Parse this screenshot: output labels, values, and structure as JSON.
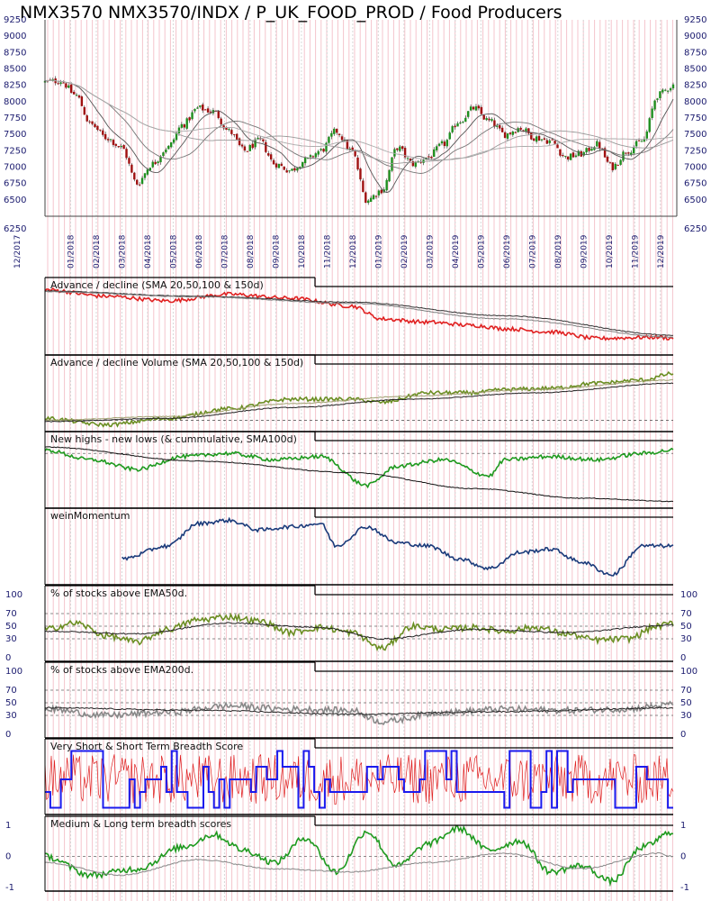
{
  "title": "NMX3570 NMX3570/INDX / P_UK_FOOD_PROD / Food Producers",
  "chart_data": {
    "type": "line",
    "x_ticks": [
      "12/2017",
      "01/2018",
      "02/2018",
      "03/2018",
      "04/2018",
      "05/2018",
      "06/2018",
      "07/2018",
      "08/2018",
      "09/2018",
      "10/2018",
      "11/2018",
      "12/2018",
      "01/2019",
      "02/2019",
      "03/2019",
      "04/2019",
      "05/2019",
      "06/2019",
      "07/2019",
      "08/2019",
      "09/2019",
      "10/2019",
      "11/2019",
      "12/2019"
    ],
    "panels": [
      {
        "id": "price",
        "type": "candlestick",
        "title": "NMX3570 NMX3570/INDX / P_UK_FOOD_PROD / Food Producers",
        "y_ticks": [
          9250,
          9000,
          8750,
          8500,
          8250,
          8000,
          7750,
          7500,
          7250,
          7000,
          6750,
          6500,
          6250
        ],
        "ylim": [
          6250,
          9250
        ],
        "close_anchors": [
          [
            0,
            8300
          ],
          [
            1,
            8320
          ],
          [
            2,
            8100
          ],
          [
            3,
            7650
          ],
          [
            4,
            7450
          ],
          [
            5,
            7300
          ],
          [
            6,
            6750
          ],
          [
            7,
            7050
          ],
          [
            8,
            7300
          ],
          [
            9,
            7650
          ],
          [
            10,
            7900
          ],
          [
            11,
            7850
          ],
          [
            12,
            7550
          ],
          [
            13,
            7250
          ],
          [
            14,
            7400
          ],
          [
            15,
            7050
          ],
          [
            16,
            6950
          ],
          [
            17,
            7100
          ],
          [
            18,
            7250
          ],
          [
            19,
            7550
          ],
          [
            20,
            7250
          ],
          [
            21,
            6500
          ],
          [
            22,
            6650
          ],
          [
            23,
            7300
          ],
          [
            24,
            7050
          ],
          [
            25,
            7150
          ],
          [
            26,
            7350
          ],
          [
            27,
            7700
          ],
          [
            28,
            7900
          ],
          [
            29,
            7700
          ],
          [
            30,
            7500
          ],
          [
            31,
            7600
          ],
          [
            32,
            7450
          ],
          [
            33,
            7400
          ],
          [
            34,
            7150
          ],
          [
            35,
            7200
          ],
          [
            36,
            7350
          ],
          [
            37,
            7000
          ],
          [
            38,
            7250
          ],
          [
            39,
            7400
          ],
          [
            40,
            8100
          ],
          [
            41,
            8250
          ]
        ],
        "moving_averages": [
          "SMA20",
          "SMA50",
          "SMA100",
          "SMA150"
        ]
      },
      {
        "id": "ad",
        "title": "Advance / decline (SMA 20,50,100 & 150d)",
        "series": [
          {
            "color": "#e02020",
            "anchors": [
              [
                0,
                0.95
              ],
              [
                4,
                0.85
              ],
              [
                8,
                0.78
              ],
              [
                12,
                0.88
              ],
              [
                16,
                0.82
              ],
              [
                20,
                0.7
              ],
              [
                22,
                0.5
              ],
              [
                25,
                0.45
              ],
              [
                28,
                0.4
              ],
              [
                30,
                0.35
              ],
              [
                33,
                0.3
              ],
              [
                36,
                0.2
              ],
              [
                40,
                0.22
              ],
              [
                41,
                0.2
              ]
            ]
          },
          {
            "color": "#333333",
            "anchors": [
              [
                0,
                0.93
              ],
              [
                10,
                0.85
              ],
              [
                20,
                0.76
              ],
              [
                30,
                0.55
              ],
              [
                41,
                0.25
              ]
            ]
          },
          {
            "color": "#808080",
            "anchors": [
              [
                0,
                0.92
              ],
              [
                10,
                0.84
              ],
              [
                20,
                0.74
              ],
              [
                30,
                0.5
              ],
              [
                41,
                0.22
              ]
            ]
          }
        ]
      },
      {
        "id": "adv",
        "title": "Advance / decline Volume (SMA 20,50,100 & 150d)",
        "series": [
          {
            "color": "#6b8e23",
            "anchors": [
              [
                0,
                0.15
              ],
              [
                4,
                0.05
              ],
              [
                8,
                0.15
              ],
              [
                12,
                0.3
              ],
              [
                16,
                0.45
              ],
              [
                20,
                0.45
              ],
              [
                22,
                0.4
              ],
              [
                25,
                0.55
              ],
              [
                28,
                0.55
              ],
              [
                30,
                0.6
              ],
              [
                33,
                0.62
              ],
              [
                36,
                0.7
              ],
              [
                39,
                0.75
              ],
              [
                41,
                0.85
              ]
            ]
          },
          {
            "color": "#222222",
            "anchors": [
              [
                0,
                0.1
              ],
              [
                8,
                0.15
              ],
              [
                16,
                0.32
              ],
              [
                24,
                0.45
              ],
              [
                32,
                0.55
              ],
              [
                41,
                0.7
              ]
            ]
          },
          {
            "color": "#a0a070",
            "anchors": [
              [
                0,
                0.12
              ],
              [
                8,
                0.18
              ],
              [
                16,
                0.38
              ],
              [
                24,
                0.5
              ],
              [
                32,
                0.6
              ],
              [
                41,
                0.75
              ]
            ]
          }
        ]
      },
      {
        "id": "nhnl",
        "title": "New highs - new lows (& cummulative, SMA100d)",
        "series": [
          {
            "color": "#1f9a1f",
            "anchors": [
              [
                0,
                0.85
              ],
              [
                3,
                0.7
              ],
              [
                6,
                0.55
              ],
              [
                9,
                0.75
              ],
              [
                12,
                0.8
              ],
              [
                15,
                0.7
              ],
              [
                18,
                0.75
              ],
              [
                21,
                0.3
              ],
              [
                23,
                0.6
              ],
              [
                26,
                0.7
              ],
              [
                29,
                0.45
              ],
              [
                30,
                0.7
              ],
              [
                33,
                0.75
              ],
              [
                36,
                0.7
              ],
              [
                39,
                0.8
              ],
              [
                41,
                0.85
              ]
            ]
          },
          {
            "color": "#111111",
            "anchors": [
              [
                0,
                0.9
              ],
              [
                10,
                0.68
              ],
              [
                20,
                0.5
              ],
              [
                28,
                0.25
              ],
              [
                35,
                0.1
              ],
              [
                41,
                0.05
              ]
            ]
          }
        ]
      },
      {
        "id": "wein",
        "title": "weinMomentum",
        "start_index": 5,
        "series": [
          {
            "color": "#1a3a7a",
            "anchors": [
              [
                5,
                0.35
              ],
              [
                8,
                0.55
              ],
              [
                10,
                0.9
              ],
              [
                12,
                0.95
              ],
              [
                14,
                0.8
              ],
              [
                16,
                0.85
              ],
              [
                18,
                0.9
              ],
              [
                19,
                0.55
              ],
              [
                21,
                0.85
              ],
              [
                23,
                0.6
              ],
              [
                25,
                0.55
              ],
              [
                27,
                0.35
              ],
              [
                29,
                0.2
              ],
              [
                31,
                0.45
              ],
              [
                33,
                0.5
              ],
              [
                35,
                0.3
              ],
              [
                37,
                0.1
              ],
              [
                39,
                0.55
              ],
              [
                41,
                0.55
              ]
            ]
          }
        ]
      },
      {
        "id": "ema50",
        "title": "% of stocks above EMA50d.",
        "y_ticks": [
          100,
          70,
          50,
          30,
          0
        ],
        "ylim": [
          0,
          100
        ],
        "series": [
          {
            "color": "#6b8e23",
            "anchors": [
              [
                0,
                45
              ],
              [
                2,
                55
              ],
              [
                4,
                35
              ],
              [
                6,
                25
              ],
              [
                8,
                45
              ],
              [
                10,
                60
              ],
              [
                12,
                65
              ],
              [
                14,
                58
              ],
              [
                16,
                40
              ],
              [
                18,
                48
              ],
              [
                20,
                40
              ],
              [
                22,
                15
              ],
              [
                24,
                50
              ],
              [
                26,
                45
              ],
              [
                28,
                48
              ],
              [
                30,
                42
              ],
              [
                32,
                48
              ],
              [
                34,
                38
              ],
              [
                36,
                28
              ],
              [
                38,
                30
              ],
              [
                40,
                50
              ],
              [
                41,
                55
              ]
            ]
          },
          {
            "color": "#222222",
            "anchors": [
              [
                0,
                42
              ],
              [
                6,
                38
              ],
              [
                12,
                55
              ],
              [
                18,
                48
              ],
              [
                22,
                30
              ],
              [
                28,
                45
              ],
              [
                34,
                40
              ],
              [
                41,
                52
              ]
            ]
          }
        ]
      },
      {
        "id": "ema200",
        "title": "% of stocks above EMA200d.",
        "y_ticks": [
          100,
          70,
          50,
          30,
          0
        ],
        "ylim": [
          0,
          100
        ],
        "series": [
          {
            "color": "#888888",
            "anchors": [
              [
                0,
                40
              ],
              [
                4,
                30
              ],
              [
                8,
                35
              ],
              [
                12,
                45
              ],
              [
                16,
                40
              ],
              [
                20,
                38
              ],
              [
                22,
                20
              ],
              [
                26,
                35
              ],
              [
                30,
                40
              ],
              [
                34,
                38
              ],
              [
                38,
                40
              ],
              [
                40,
                45
              ],
              [
                41,
                48
              ]
            ]
          },
          {
            "color": "#222222",
            "anchors": [
              [
                0,
                42
              ],
              [
                10,
                38
              ],
              [
                20,
                32
              ],
              [
                30,
                36
              ],
              [
                41,
                42
              ]
            ]
          }
        ]
      },
      {
        "id": "vsst",
        "title": "Very Short & Short Term Breadth Score",
        "series": [
          {
            "color": "#e02020",
            "style": "noisy"
          },
          {
            "color": "#1a1aee",
            "style": "step"
          }
        ]
      },
      {
        "id": "mlt",
        "title": "Medium & Long term breadth scores",
        "y_ticks": [
          1,
          0,
          -1
        ],
        "ylim": [
          -1,
          1
        ],
        "series": [
          {
            "color": "#1f9a1f",
            "anchors": [
              [
                0,
                0.0
              ],
              [
                3,
                -0.6
              ],
              [
                6,
                -0.4
              ],
              [
                9,
                0.3
              ],
              [
                11,
                0.7
              ],
              [
                13,
                0.2
              ],
              [
                15,
                -0.2
              ],
              [
                17,
                0.6
              ],
              [
                19,
                -0.5
              ],
              [
                21,
                0.8
              ],
              [
                23,
                -0.3
              ],
              [
                25,
                0.4
              ],
              [
                27,
                0.9
              ],
              [
                29,
                0.2
              ],
              [
                31,
                0.5
              ],
              [
                33,
                -0.5
              ],
              [
                35,
                -0.3
              ],
              [
                37,
                -0.8
              ],
              [
                39,
                0.3
              ],
              [
                41,
                0.8
              ]
            ]
          },
          {
            "color": "#888888",
            "anchors": [
              [
                0,
                -0.2
              ],
              [
                5,
                -0.6
              ],
              [
                10,
                -0.1
              ],
              [
                15,
                -0.4
              ],
              [
                20,
                -0.5
              ],
              [
                25,
                -0.2
              ],
              [
                30,
                0.1
              ],
              [
                35,
                -0.4
              ],
              [
                40,
                0.1
              ],
              [
                41,
                0.0
              ]
            ]
          }
        ]
      }
    ]
  }
}
